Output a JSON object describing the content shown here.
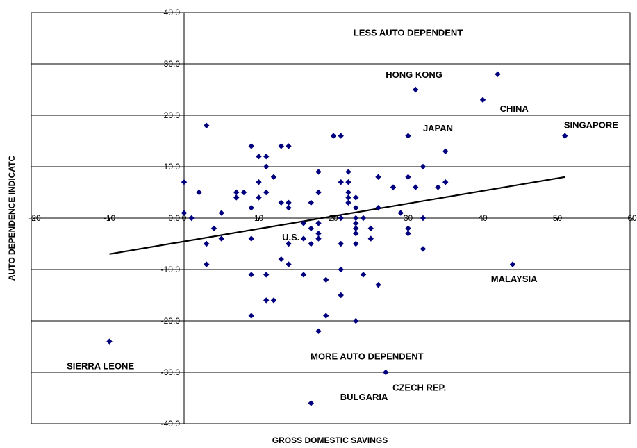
{
  "chart_data": {
    "type": "scatter",
    "title": "",
    "xlabel": "GROSS DOMESTIC SAVINGS",
    "ylabel": "AUTO DEPENDENCE INDICATC",
    "xlim": [
      -20,
      60
    ],
    "ylim": [
      -40,
      40
    ],
    "x_ticks": [
      -20,
      -10,
      0,
      10,
      20,
      30,
      40,
      50,
      60
    ],
    "y_ticks": [
      -40,
      -30,
      -20,
      -10,
      0,
      10,
      20,
      30,
      40
    ],
    "x_tick_labels": [
      "-20",
      "-10",
      "0",
      "10",
      "20",
      "30",
      "40",
      "50",
      "60"
    ],
    "y_tick_labels": [
      "-40.0",
      "-30.0",
      "-20.0",
      "-10.0",
      "0.0",
      "10.0",
      "20.0",
      "30.0",
      "40.0"
    ],
    "grid": "horizontal",
    "marker_color": "#00007f",
    "trendline": {
      "x": [
        -10,
        51
      ],
      "y": [
        -7.0,
        8.0
      ],
      "color": "#000000"
    },
    "points": [
      {
        "x": 0,
        "y": 7
      },
      {
        "x": 0,
        "y": 1
      },
      {
        "x": 1,
        "y": 0
      },
      {
        "x": 2,
        "y": 5
      },
      {
        "x": 3,
        "y": 18
      },
      {
        "x": 3,
        "y": -5
      },
      {
        "x": 3,
        "y": -9
      },
      {
        "x": 4,
        "y": -2
      },
      {
        "x": 5,
        "y": 1
      },
      {
        "x": 5,
        "y": -4
      },
      {
        "x": 7,
        "y": 5
      },
      {
        "x": 7,
        "y": 4
      },
      {
        "x": 8,
        "y": 5
      },
      {
        "x": 9,
        "y": 14
      },
      {
        "x": 9,
        "y": 2
      },
      {
        "x": 9,
        "y": -4
      },
      {
        "x": 9,
        "y": -11
      },
      {
        "x": 9,
        "y": -19
      },
      {
        "x": 10,
        "y": 12
      },
      {
        "x": 10,
        "y": 7
      },
      {
        "x": 10,
        "y": 4
      },
      {
        "x": 11,
        "y": 12
      },
      {
        "x": 11,
        "y": 10
      },
      {
        "x": 11,
        "y": 5
      },
      {
        "x": 11,
        "y": -11
      },
      {
        "x": 11,
        "y": -16
      },
      {
        "x": 12,
        "y": 8
      },
      {
        "x": 12,
        "y": -16
      },
      {
        "x": 13,
        "y": 14
      },
      {
        "x": 13,
        "y": 3
      },
      {
        "x": 13,
        "y": -8
      },
      {
        "x": 14,
        "y": 14
      },
      {
        "x": 14,
        "y": 3
      },
      {
        "x": 14,
        "y": 2
      },
      {
        "x": 14,
        "y": -5
      },
      {
        "x": 14,
        "y": -9
      },
      {
        "x": 16,
        "y": -1
      },
      {
        "x": 16,
        "y": -4
      },
      {
        "x": 16,
        "y": -11
      },
      {
        "x": 17,
        "y": 3
      },
      {
        "x": 17,
        "y": -2
      },
      {
        "x": 17,
        "y": -5
      },
      {
        "x": 17,
        "y": -36
      },
      {
        "x": 18,
        "y": 9
      },
      {
        "x": 18,
        "y": 5
      },
      {
        "x": 18,
        "y": -1
      },
      {
        "x": 18,
        "y": -3
      },
      {
        "x": 18,
        "y": -4
      },
      {
        "x": 18,
        "y": -22
      },
      {
        "x": 19,
        "y": -12
      },
      {
        "x": 19,
        "y": -19
      },
      {
        "x": 20,
        "y": 16
      },
      {
        "x": 21,
        "y": 16
      },
      {
        "x": 21,
        "y": 7
      },
      {
        "x": 21,
        "y": 0
      },
      {
        "x": 21,
        "y": -5
      },
      {
        "x": 21,
        "y": -10
      },
      {
        "x": 21,
        "y": -15
      },
      {
        "x": 22,
        "y": 9
      },
      {
        "x": 22,
        "y": 7
      },
      {
        "x": 22,
        "y": 5
      },
      {
        "x": 22,
        "y": 4
      },
      {
        "x": 22,
        "y": 3
      },
      {
        "x": 23,
        "y": 4
      },
      {
        "x": 23,
        "y": 2
      },
      {
        "x": 23,
        "y": 0
      },
      {
        "x": 23,
        "y": -1
      },
      {
        "x": 23,
        "y": -2
      },
      {
        "x": 23,
        "y": -3
      },
      {
        "x": 23,
        "y": -5
      },
      {
        "x": 23,
        "y": -20
      },
      {
        "x": 24,
        "y": 0
      },
      {
        "x": 24,
        "y": -11
      },
      {
        "x": 25,
        "y": -2
      },
      {
        "x": 25,
        "y": -4
      },
      {
        "x": 26,
        "y": 8
      },
      {
        "x": 26,
        "y": 2
      },
      {
        "x": 26,
        "y": -13
      },
      {
        "x": 27,
        "y": -30
      },
      {
        "x": 28,
        "y": 6
      },
      {
        "x": 29,
        "y": 1
      },
      {
        "x": 30,
        "y": 16
      },
      {
        "x": 30,
        "y": 8
      },
      {
        "x": 30,
        "y": -2
      },
      {
        "x": 30,
        "y": -3
      },
      {
        "x": 31,
        "y": 25
      },
      {
        "x": 31,
        "y": 6
      },
      {
        "x": 32,
        "y": 10
      },
      {
        "x": 32,
        "y": 0
      },
      {
        "x": 32,
        "y": -6
      },
      {
        "x": 34,
        "y": 6
      },
      {
        "x": 35,
        "y": 13
      },
      {
        "x": 35,
        "y": 7
      },
      {
        "x": 40,
        "y": 23
      },
      {
        "x": 42,
        "y": 28
      },
      {
        "x": 44,
        "y": -9
      },
      {
        "x": 51,
        "y": 16
      },
      {
        "x": -10,
        "y": -24
      }
    ],
    "annotations": [
      {
        "text": "LESS AUTO DEPENDENT",
        "x": 30,
        "y": 35.5
      },
      {
        "text": "HONG KONG",
        "x": 30.8,
        "y": 27.3
      },
      {
        "text": "CHINA",
        "x": 44.2,
        "y": 20.7
      },
      {
        "text": "JAPAN",
        "x": 34,
        "y": 16.9
      },
      {
        "text": "SINGAPORE",
        "x": 54.5,
        "y": 17.5
      },
      {
        "text": "U.S.",
        "x": 14.3,
        "y": -4.3
      },
      {
        "text": "MALAYSIA",
        "x": 44.2,
        "y": -12.4
      },
      {
        "text": "SIERRA LEONE",
        "x": -11.2,
        "y": -29.4
      },
      {
        "text": "MORE AUTO DEPENDENT",
        "x": 24.5,
        "y": -27.5
      },
      {
        "text": "CZECH REP.",
        "x": 31.5,
        "y": -33.6
      },
      {
        "text": "BULGARIA",
        "x": 24.1,
        "y": -35.4
      }
    ]
  }
}
